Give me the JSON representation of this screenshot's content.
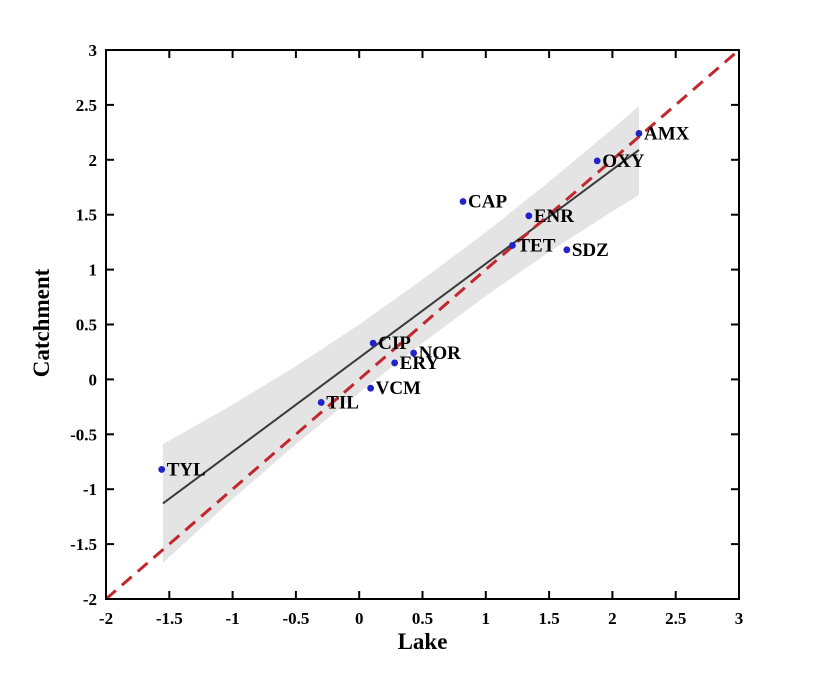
{
  "chart_data": {
    "type": "scatter",
    "title": "",
    "xlabel": "Lake",
    "ylabel": "Catchment",
    "xlim": [
      -2,
      3
    ],
    "ylim": [
      -2,
      3
    ],
    "grid": false,
    "legend": "none",
    "xticks": [
      "-2",
      "-1.5",
      "-1",
      "-0.5",
      "0",
      "0.5",
      "1",
      "1.5",
      "2",
      "2.5",
      "3"
    ],
    "yticks": [
      "-2",
      "-1.5",
      "-1",
      "-0.5",
      "0",
      "0.5",
      "1",
      "1.5",
      "2",
      "2.5",
      "3"
    ],
    "points": [
      {
        "label": "TYL",
        "x": -1.56,
        "y": -0.82
      },
      {
        "label": "TIL",
        "x": -0.3,
        "y": -0.21
      },
      {
        "label": "VCM",
        "x": 0.09,
        "y": -0.08
      },
      {
        "label": "CIP",
        "x": 0.11,
        "y": 0.33
      },
      {
        "label": "ERY",
        "x": 0.28,
        "y": 0.15
      },
      {
        "label": "NOR",
        "x": 0.43,
        "y": 0.24
      },
      {
        "label": "CAP",
        "x": 0.82,
        "y": 1.62
      },
      {
        "label": "TET",
        "x": 1.21,
        "y": 1.22
      },
      {
        "label": "ENR",
        "x": 1.34,
        "y": 1.49
      },
      {
        "label": "SDZ",
        "x": 1.64,
        "y": 1.18
      },
      {
        "label": "OXY",
        "x": 1.88,
        "y": 1.99
      },
      {
        "label": "AMX",
        "x": 2.21,
        "y": 2.24
      }
    ],
    "identity_line": {
      "x1": -2,
      "y1": -2,
      "x2": 3,
      "y2": 3,
      "style": "dashed"
    },
    "fit_line": {
      "x1": -1.55,
      "y1": -1.13,
      "x2": 2.21,
      "y2": 2.09
    },
    "confidence_band": {
      "x": [
        -1.55,
        -1.0,
        -0.5,
        0.0,
        0.5,
        1.0,
        1.5,
        2.0,
        2.21
      ],
      "upper": [
        -0.59,
        -0.23,
        0.12,
        0.5,
        0.91,
        1.34,
        1.8,
        2.28,
        2.49
      ],
      "lower": [
        -1.67,
        -1.09,
        -0.59,
        -0.12,
        0.33,
        0.76,
        1.16,
        1.53,
        1.68
      ]
    },
    "colors": {
      "point": "#2222cc",
      "point_label": "#000000",
      "identity_line": "#c1272d",
      "fit_line": "#3a3a3a",
      "confidence_band": "#e4e4e4",
      "frame": "#000000",
      "tick_label": "#000000"
    }
  }
}
